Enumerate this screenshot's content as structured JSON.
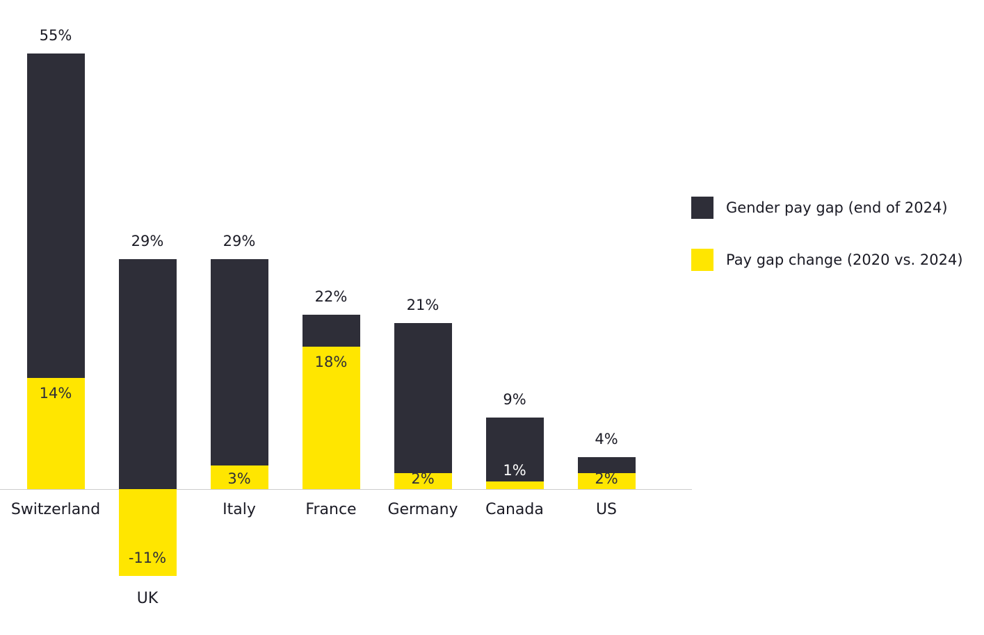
{
  "chart_data": {
    "type": "bar",
    "title": "",
    "xlabel": "",
    "ylabel": "",
    "grid": false,
    "legend_position": "right",
    "categories": [
      "Switzerland",
      "UK",
      "Italy",
      "France",
      "Germany",
      "Canada",
      "US"
    ],
    "series": [
      {
        "name": "Gender pay gap (end of 2024)",
        "color": "#2e2e38",
        "values": [
          55,
          29,
          29,
          22,
          21,
          9,
          4
        ]
      },
      {
        "name": "Pay gap change (2020 vs. 2024)",
        "color": "#ffe600",
        "values": [
          14,
          -11,
          3,
          18,
          2,
          1,
          2
        ]
      }
    ],
    "ylim": [
      -11,
      55
    ],
    "notes": "Bars overlap on a shared baseline; change bar drawn in front of gap bar."
  },
  "labels": {
    "gap": [
      "55%",
      "29%",
      "29%",
      "22%",
      "21%",
      "9%",
      "4%"
    ],
    "change": [
      "14%",
      "-11%",
      "3%",
      "18%",
      "2%",
      "1%",
      "2%"
    ],
    "categories": [
      "Switzerland",
      "UK",
      "Italy",
      "France",
      "Germany",
      "Canada",
      "US"
    ]
  },
  "legend": {
    "items": [
      {
        "label": "Gender pay gap (end of 2024)",
        "color": "#2e2e38"
      },
      {
        "label": "Pay gap change (2020 vs. 2024)",
        "color": "#ffe600"
      }
    ]
  }
}
